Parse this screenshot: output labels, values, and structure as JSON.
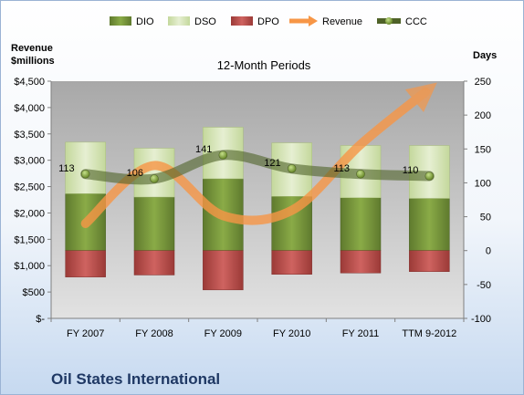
{
  "chart_data": {
    "type": "bar",
    "title": "12-Month Periods",
    "company": "Oil States International",
    "y_left_label_line1": "Revenue",
    "y_left_label_line2": "$millions",
    "y_right_label": "Days",
    "categories": [
      "FY 2007",
      "FY 2008",
      "FY 2009",
      "FY 2010",
      "FY 2011",
      "TTM 9-2012"
    ],
    "y_left_ticks": [
      "$-",
      "$500",
      "$1,000",
      "$1,500",
      "$2,000",
      "$2,500",
      "$3,000",
      "$3,500",
      "$4,000",
      "$4,500"
    ],
    "y_left_range": [
      0,
      4500
    ],
    "y_right_ticks": [
      "-100",
      "-50",
      "0",
      "50",
      "100",
      "150",
      "200",
      "250"
    ],
    "y_right_range": [
      -100,
      250
    ],
    "legend": [
      "DIO",
      "DSO",
      "DPO",
      "Revenue",
      "CCC"
    ],
    "series": [
      {
        "name": "DIO",
        "axis": "right",
        "values": [
          84,
          79,
          106,
          80,
          78,
          77
        ],
        "color": "#77933c"
      },
      {
        "name": "DSO",
        "axis": "right",
        "values": [
          76,
          72,
          76,
          79,
          77,
          78
        ],
        "color": "#d7e4bd"
      },
      {
        "name": "DPO",
        "axis": "right",
        "values": [
          -39,
          -36,
          -58,
          -35,
          -33,
          -31
        ],
        "color": "#c0504d"
      },
      {
        "name": "Revenue",
        "axis": "left",
        "values": [
          1800,
          2900,
          1950,
          2050,
          3300,
          4300
        ],
        "color": "#f79646"
      },
      {
        "name": "CCC",
        "axis": "right",
        "values": [
          113,
          106,
          141,
          121,
          113,
          110
        ],
        "color": "#4f6228"
      }
    ],
    "data_labels": [
      "113",
      "106",
      "141",
      "121",
      "113",
      "110"
    ],
    "grid": false,
    "legend_position": "top"
  }
}
